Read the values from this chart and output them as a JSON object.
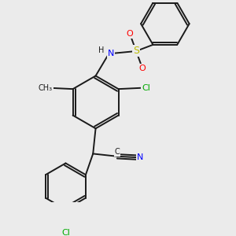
{
  "background_color": "#ebebeb",
  "line_color": "#1a1a1a",
  "atom_colors": {
    "N": "#0000ff",
    "O": "#ff0000",
    "S": "#bbbb00",
    "Cl": "#00aa00",
    "C": "#1a1a1a",
    "H": "#1a1a1a"
  },
  "font_size": 8,
  "lw": 1.4
}
